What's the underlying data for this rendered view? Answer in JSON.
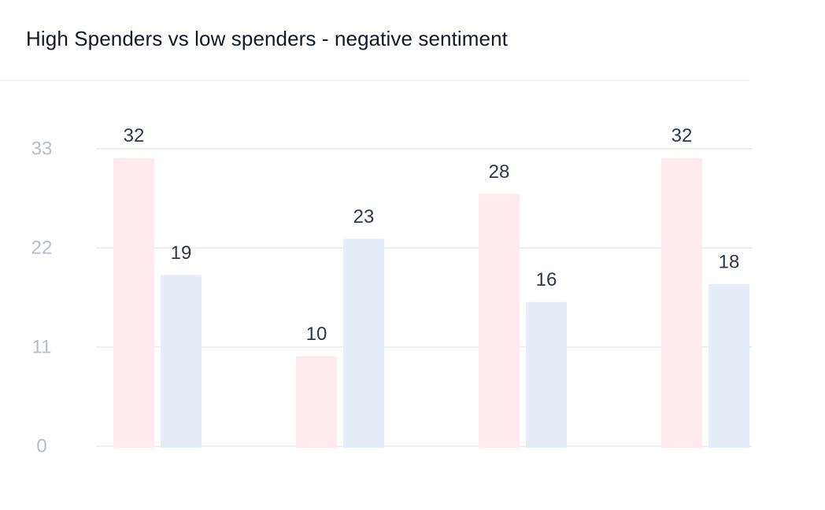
{
  "header": {
    "title": "High Spenders vs low spenders - negative sentiment"
  },
  "colors": {
    "high_spenders": "#ffebef",
    "low_spenders": "#e3eef9",
    "grid": "#eceef2",
    "tick_text": "#b8bcc8",
    "label_text": "#2f3747"
  },
  "chart_data": {
    "type": "bar",
    "title": "High Spenders vs low spenders - negative sentiment",
    "xlabel": "",
    "ylabel": "",
    "categories": [
      "",
      "",
      "",
      ""
    ],
    "series": [
      {
        "values": [
          32,
          10,
          28,
          32
        ]
      },
      {
        "values": [
          19,
          23,
          16,
          18
        ]
      }
    ],
    "ylim": [
      0,
      33
    ],
    "yticks": [
      0,
      11,
      22,
      33
    ],
    "grid": true,
    "legend": "none",
    "data_labels": true
  }
}
